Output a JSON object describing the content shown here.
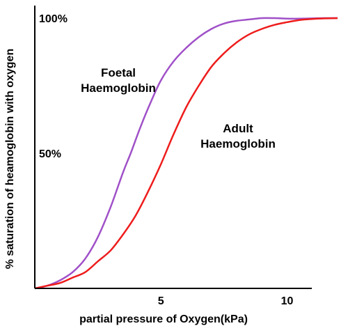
{
  "chart_data": {
    "type": "line",
    "xlabel": "partial pressure of Oxygen(kPa)",
    "ylabel": "% saturation of heamoglobin with oxygen",
    "x_ticks": [
      {
        "value": 5,
        "label": "5"
      },
      {
        "value": 10,
        "label": "10"
      }
    ],
    "y_ticks": [
      {
        "value": 100,
        "label": "100%"
      },
      {
        "value": 50,
        "label": "50%"
      }
    ],
    "xlim": [
      0,
      12
    ],
    "ylim": [
      0,
      100
    ],
    "grid": false,
    "legend": "none",
    "series": [
      {
        "name": "Foetal Haemoglobin",
        "label_lines": [
          "Foetal",
          "Haemoglobin"
        ],
        "color": "#a050c8",
        "x": [
          0,
          0.5,
          1,
          1.5,
          2,
          2.5,
          3,
          3.5,
          3.8,
          4.2,
          4.6,
          5,
          5.5,
          6,
          6.5,
          7,
          7.5,
          8,
          8.5,
          9,
          9.5,
          10,
          10.5,
          11,
          11.5,
          12
        ],
        "y": [
          0,
          1,
          3,
          6,
          11,
          19,
          30,
          43,
          50,
          60,
          69,
          77,
          84,
          89,
          93,
          96,
          98,
          99,
          99.5,
          100,
          100,
          99.8,
          99.8,
          99.9,
          100,
          100
        ]
      },
      {
        "name": "Adult Haemoglobin",
        "label_lines": [
          "Adult",
          "Haemoglobin"
        ],
        "color": "#ee1c1c",
        "x": [
          0,
          0.5,
          1,
          1.5,
          2,
          2.5,
          3,
          3.5,
          4,
          4.5,
          5,
          5.5,
          6,
          6.5,
          7,
          7.5,
          8,
          8.5,
          9,
          9.5,
          10,
          10.5,
          11,
          11.5,
          12
        ],
        "y": [
          0,
          1,
          2,
          4,
          6,
          10,
          14,
          20,
          27,
          36,
          46,
          57,
          67,
          75,
          82,
          87,
          91,
          94,
          96,
          97.5,
          98.5,
          99.3,
          99.7,
          99.9,
          100
        ]
      }
    ]
  },
  "colors": {
    "axis": "#000000",
    "background": "#ffffff"
  }
}
